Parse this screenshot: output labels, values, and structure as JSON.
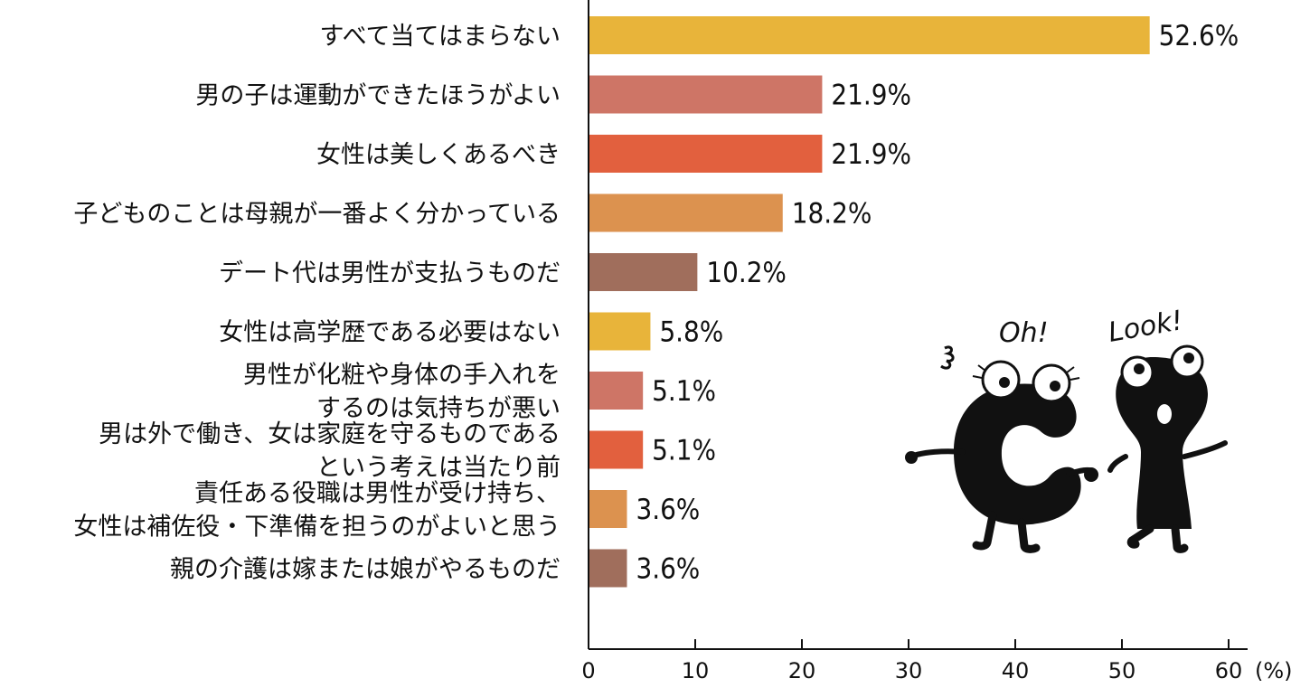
{
  "chart_data": {
    "type": "bar",
    "orientation": "horizontal",
    "categories": [
      [
        "すべて当てはまらない"
      ],
      [
        "男の子は運動ができたほうがよい"
      ],
      [
        "女性は美しくあるべき"
      ],
      [
        "子どものことは母親が一番よく分かっている"
      ],
      [
        "デート代は男性が支払うものだ"
      ],
      [
        "女性は高学歴である必要はない"
      ],
      [
        "男性が化粧や身体の手入れを",
        "するのは気持ちが悪い"
      ],
      [
        "男は外で働き、女は家庭を守るものである",
        "という考えは当たり前"
      ],
      [
        "責任ある役職は男性が受け持ち、",
        "女性は補佐役・下準備を担うのがよいと思う"
      ],
      [
        "親の介護は嫁または娘がやるものだ"
      ]
    ],
    "values": [
      52.6,
      21.9,
      21.9,
      18.2,
      10.2,
      5.8,
      5.1,
      5.1,
      3.6,
      3.6
    ],
    "value_labels": [
      "52.6%",
      "21.9%",
      "21.9%",
      "18.2%",
      "10.2%",
      "5.8%",
      "5.1%",
      "5.1%",
      "3.6%",
      "3.6%"
    ],
    "colors": [
      "#E8B43A",
      "#CE7566",
      "#E2603E",
      "#DC924F",
      "#A06E5C",
      "#E8B43A",
      "#CE7566",
      "#E2603E",
      "#DC924F",
      "#A06E5C"
    ],
    "xlim": [
      0,
      60
    ],
    "xticks": [
      0,
      10,
      20,
      30,
      40,
      50,
      60
    ],
    "x_unit": "(%)",
    "grid": false
  },
  "illustration": {
    "left_caption": "Oh!",
    "right_caption": "Look!"
  }
}
